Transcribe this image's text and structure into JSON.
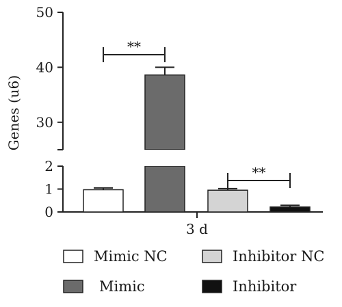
{
  "chart_data": {
    "type": "bar",
    "title": "",
    "xlabel": "3 d",
    "ylabel": "Genes (u6)",
    "y_axis_break": {
      "lower_range": [
        0,
        2
      ],
      "upper_range": [
        25,
        50
      ]
    },
    "upper_ticks": [
      "30",
      "40",
      "50"
    ],
    "lower_ticks": [
      "0",
      "1",
      "2"
    ],
    "grid": false,
    "legend_position": "bottom",
    "series": [
      {
        "name": "Mimic NC",
        "value": 0.97,
        "error": 0.08,
        "color": "#ffffff"
      },
      {
        "name": "Mimic",
        "value": 38.6,
        "error": 1.4,
        "color": "#6b6b6b"
      },
      {
        "name": "Inhibitor NC",
        "value": 0.95,
        "error": 0.07,
        "color": "#d4d4d4"
      },
      {
        "name": "Inhibitor",
        "value": 0.22,
        "error": 0.07,
        "color": "#111111"
      }
    ],
    "annotations": [
      {
        "text": "**",
        "between": [
          "Mimic NC",
          "Mimic"
        ]
      },
      {
        "text": "**",
        "between": [
          "Inhibitor NC",
          "Inhibitor"
        ]
      }
    ]
  }
}
